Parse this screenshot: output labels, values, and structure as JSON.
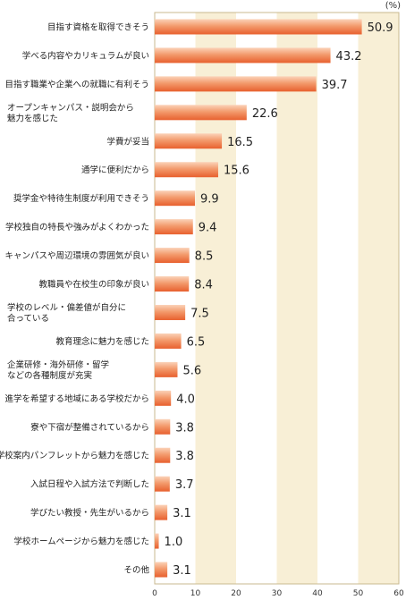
{
  "chart_data": {
    "type": "bar",
    "orientation": "horizontal",
    "unit_label": "(%)",
    "categories": [
      "目指す資格を取得できそう",
      "学べる内容やカリキュラムが良い",
      "目指す職業や企業への就職に有利そう",
      "オープンキャンパス・説明会から\n魅力を感じた",
      "学費が妥当",
      "通学に便利だから",
      "奨学金や特待生制度が利用できそう",
      "学校独自の特長や強みがよくわかった",
      "キャンパスや周辺環境の雰囲気が良い",
      "教職員や在校生の印象が良い",
      "学校のレベル・偏差値が自分に\n合っている",
      "教育理念に魅力を感じた",
      "企業研修・海外研修・留学\nなどの各種制度が充実",
      "進学を希望する地域にある学校だから",
      "寮や下宿が整備されているから",
      "学校案内パンフレットから魅力を感じた",
      "入試日程や入試方法で判断した",
      "学びたい教授・先生がいるから",
      "学校ホームページから魅力を感じた",
      "その他"
    ],
    "values": [
      50.9,
      43.2,
      39.7,
      22.6,
      16.5,
      15.6,
      9.9,
      9.4,
      8.5,
      8.4,
      7.5,
      6.5,
      5.6,
      4.0,
      3.8,
      3.8,
      3.7,
      3.1,
      1.0,
      3.1
    ],
    "value_labels": [
      "50.9",
      "43.2",
      "39.7",
      "22.6",
      "16.5",
      "15.6",
      "9.9",
      "9.4",
      "8.5",
      "8.4",
      "7.5",
      "6.5",
      "5.6",
      "4.0",
      "3.8",
      "3.8",
      "3.7",
      "3.1",
      "1.0",
      "3.1"
    ],
    "xlim": [
      0,
      60
    ],
    "x_ticks": [
      "0",
      "10",
      "20",
      "30",
      "40",
      "50",
      "60"
    ],
    "alternating_bands": true,
    "colors": {
      "bar_light": "#fbd2b8",
      "bar_mid": "#f39a6c",
      "bar_dark": "#e8602e",
      "band": "#f8efd6",
      "axis": "#c9b98f"
    }
  }
}
